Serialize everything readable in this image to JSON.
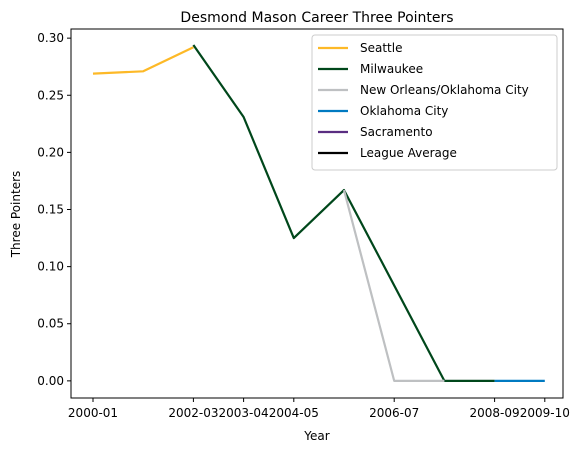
{
  "chart_data": {
    "type": "line",
    "title": "Desmond Mason Career Three Pointers",
    "xlabel": "Year",
    "ylabel": "Three Pointers",
    "categories": [
      "2000-01",
      "2001-02",
      "2002-03",
      "2003-04",
      "2004-05",
      "2005-06",
      "2006-07",
      "2007-08",
      "2008-09",
      "2009-10"
    ],
    "xtick_labels": [
      "2000-01",
      "2002-03",
      "2003-04",
      "2004-05",
      "2006-07",
      "2008-09",
      "2009-10"
    ],
    "ylim": [
      -0.015,
      0.308
    ],
    "yticks": [
      0.0,
      0.05,
      0.1,
      0.15,
      0.2,
      0.25,
      0.3
    ],
    "ytick_labels": [
      "0.00",
      "0.05",
      "0.10",
      "0.15",
      "0.20",
      "0.25",
      "0.30"
    ],
    "legend_position": "top-right",
    "grid": false,
    "series": [
      {
        "name": "Seattle",
        "color": "#FDB927",
        "points": [
          {
            "x": "2000-01",
            "y": 0.269
          },
          {
            "x": "2001-02",
            "y": 0.271
          },
          {
            "x": "2002-03",
            "y": 0.292
          }
        ]
      },
      {
        "name": "Milwaukee",
        "color": "#00471B",
        "points": [
          {
            "x": "2002-03",
            "y": 0.294
          },
          {
            "x": "2003-04",
            "y": 0.231
          },
          {
            "x": "2004-05",
            "y": 0.125
          },
          {
            "x": "2005-06",
            "y": 0.167
          },
          {
            "x": "2007-08",
            "y": 0.0
          },
          {
            "x": "2008-09",
            "y": 0.0
          }
        ]
      },
      {
        "name": "New Orleans/Oklahoma City",
        "color": "#BEC0C2",
        "points": [
          {
            "x": "2005-06",
            "y": 0.167
          },
          {
            "x": "2006-07",
            "y": 0.0
          },
          {
            "x": "2007-08",
            "y": 0.0
          }
        ]
      },
      {
        "name": "Oklahoma City",
        "color": "#007AC1",
        "points": [
          {
            "x": "2008-09",
            "y": 0.0
          },
          {
            "x": "2009-10",
            "y": 0.0
          }
        ]
      },
      {
        "name": "Sacramento",
        "color": "#5A2D81",
        "points": []
      },
      {
        "name": "League Average",
        "color": "#000000",
        "points": []
      }
    ]
  }
}
